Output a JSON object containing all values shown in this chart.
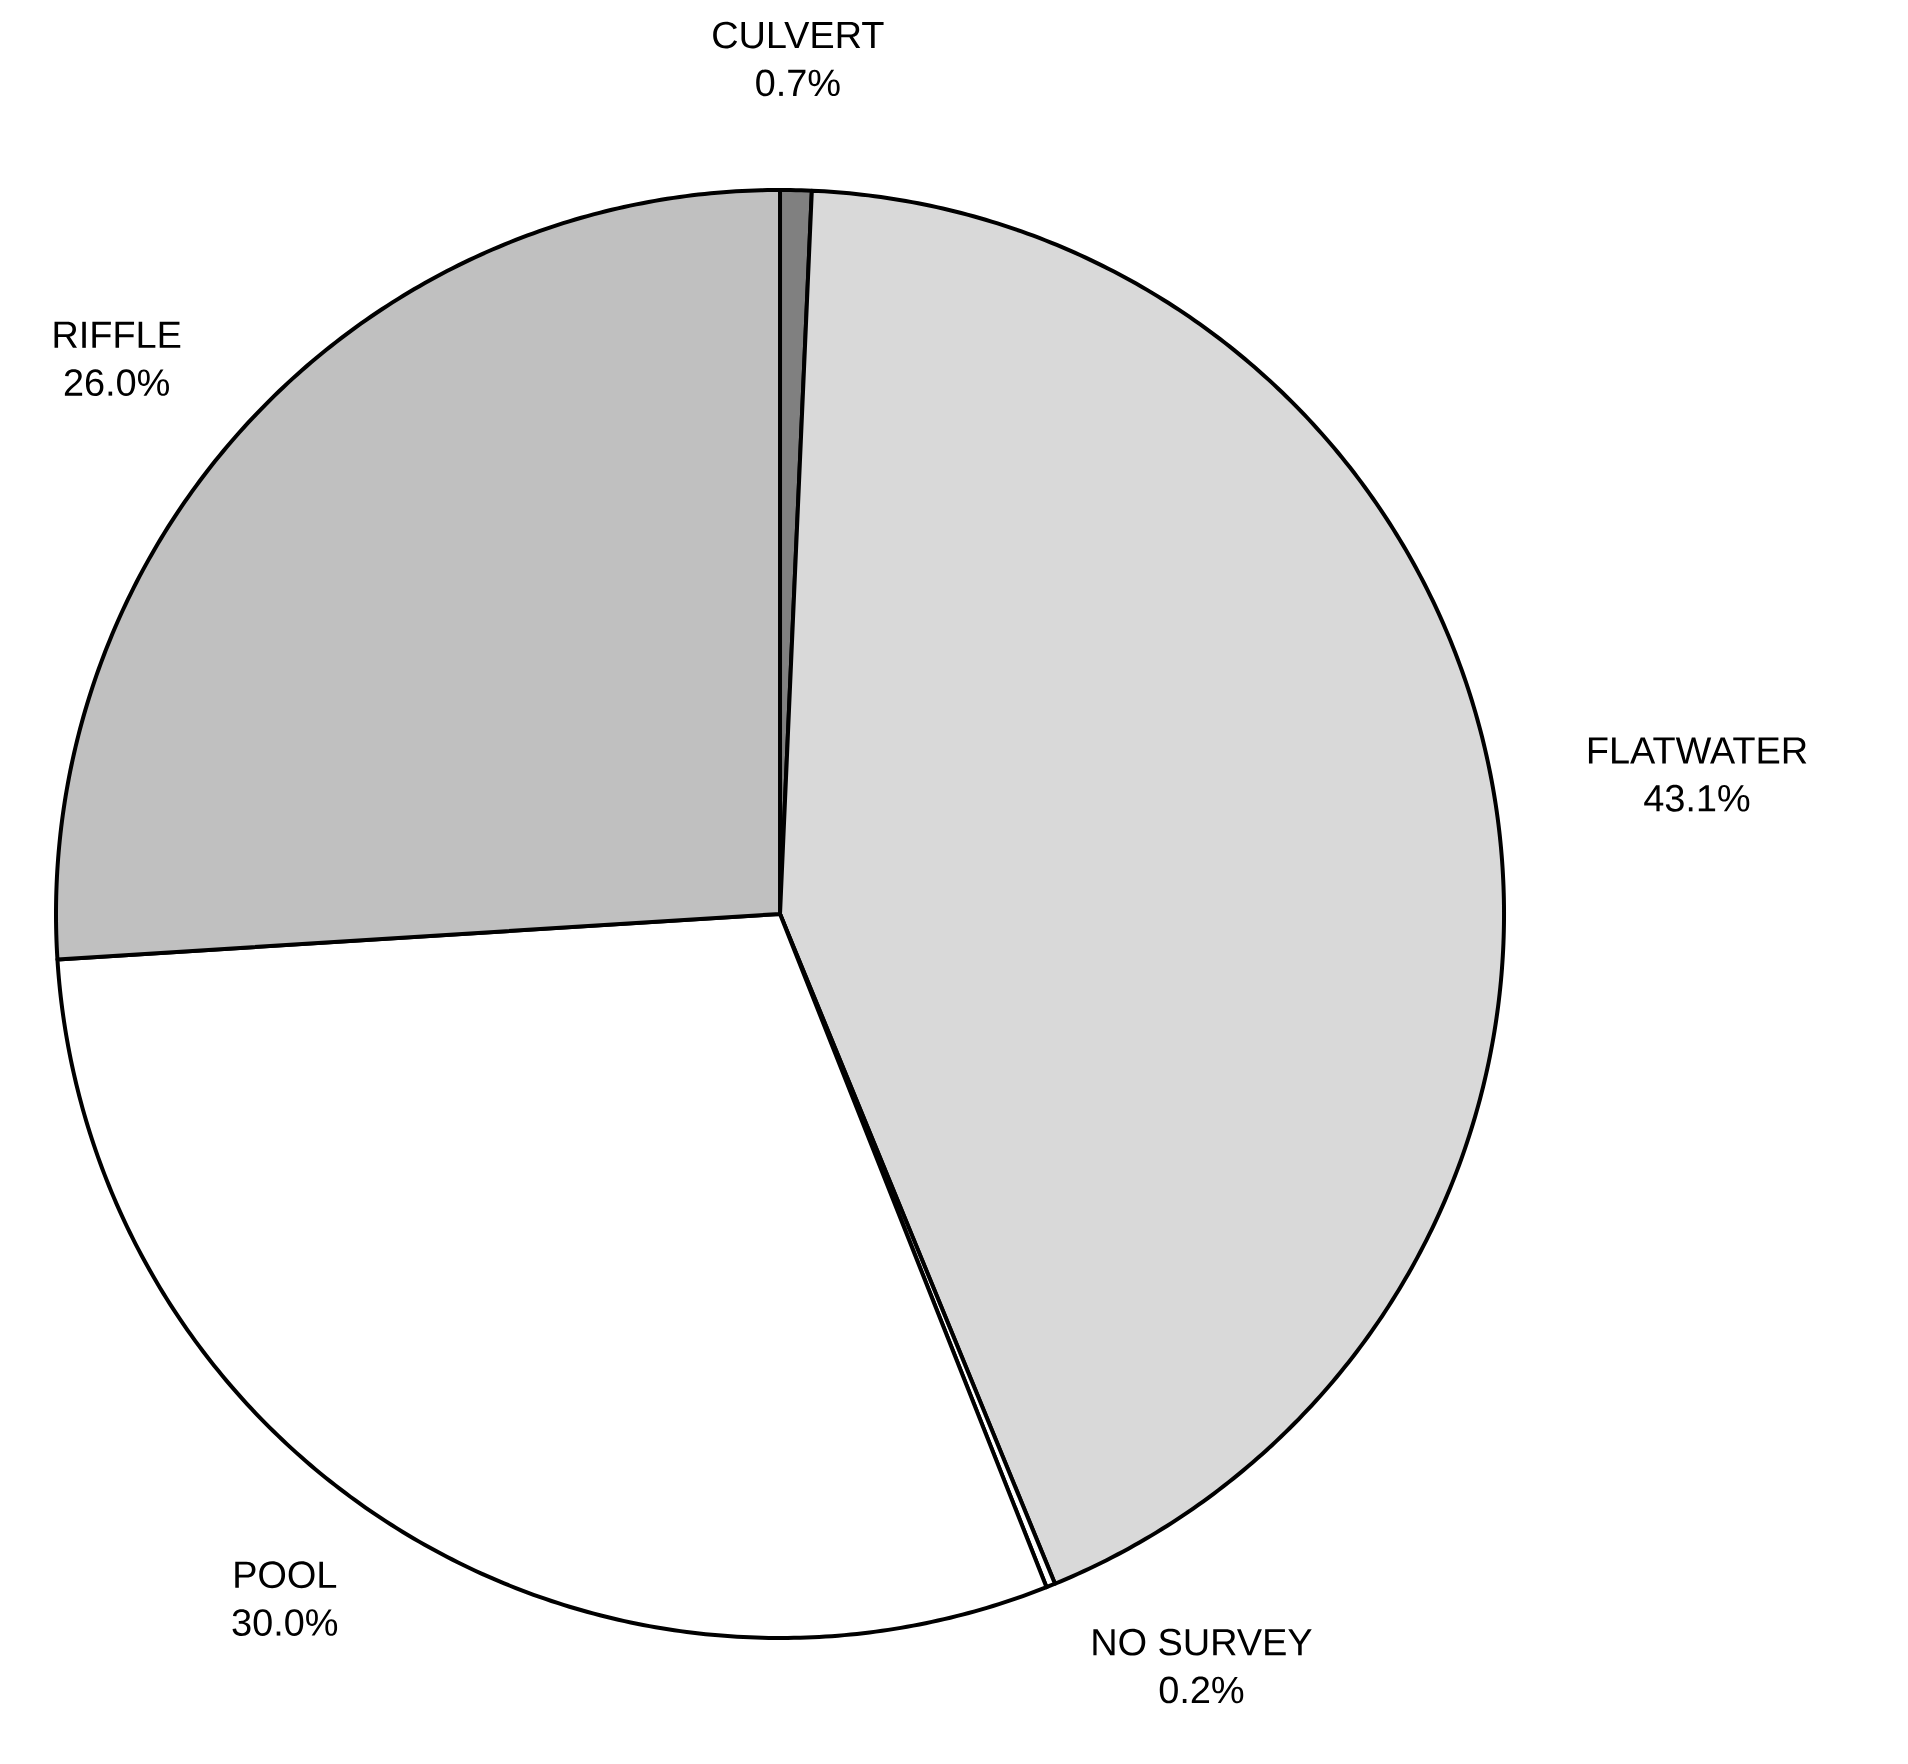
{
  "chart_data": {
    "type": "pie",
    "categories": [
      "CULVERT",
      "FLATWATER",
      "NO SURVEY",
      "POOL",
      "RIFFLE"
    ],
    "values": [
      0.7,
      43.1,
      0.2,
      30.0,
      26.0
    ],
    "value_labels": [
      "0.7%",
      "43.1%",
      "0.2%",
      "30.0%",
      "26.0%"
    ],
    "colors": [
      "#808080",
      "#d9d9d9",
      "#ffffff",
      "#ffffff",
      "#c0c0c0"
    ]
  }
}
